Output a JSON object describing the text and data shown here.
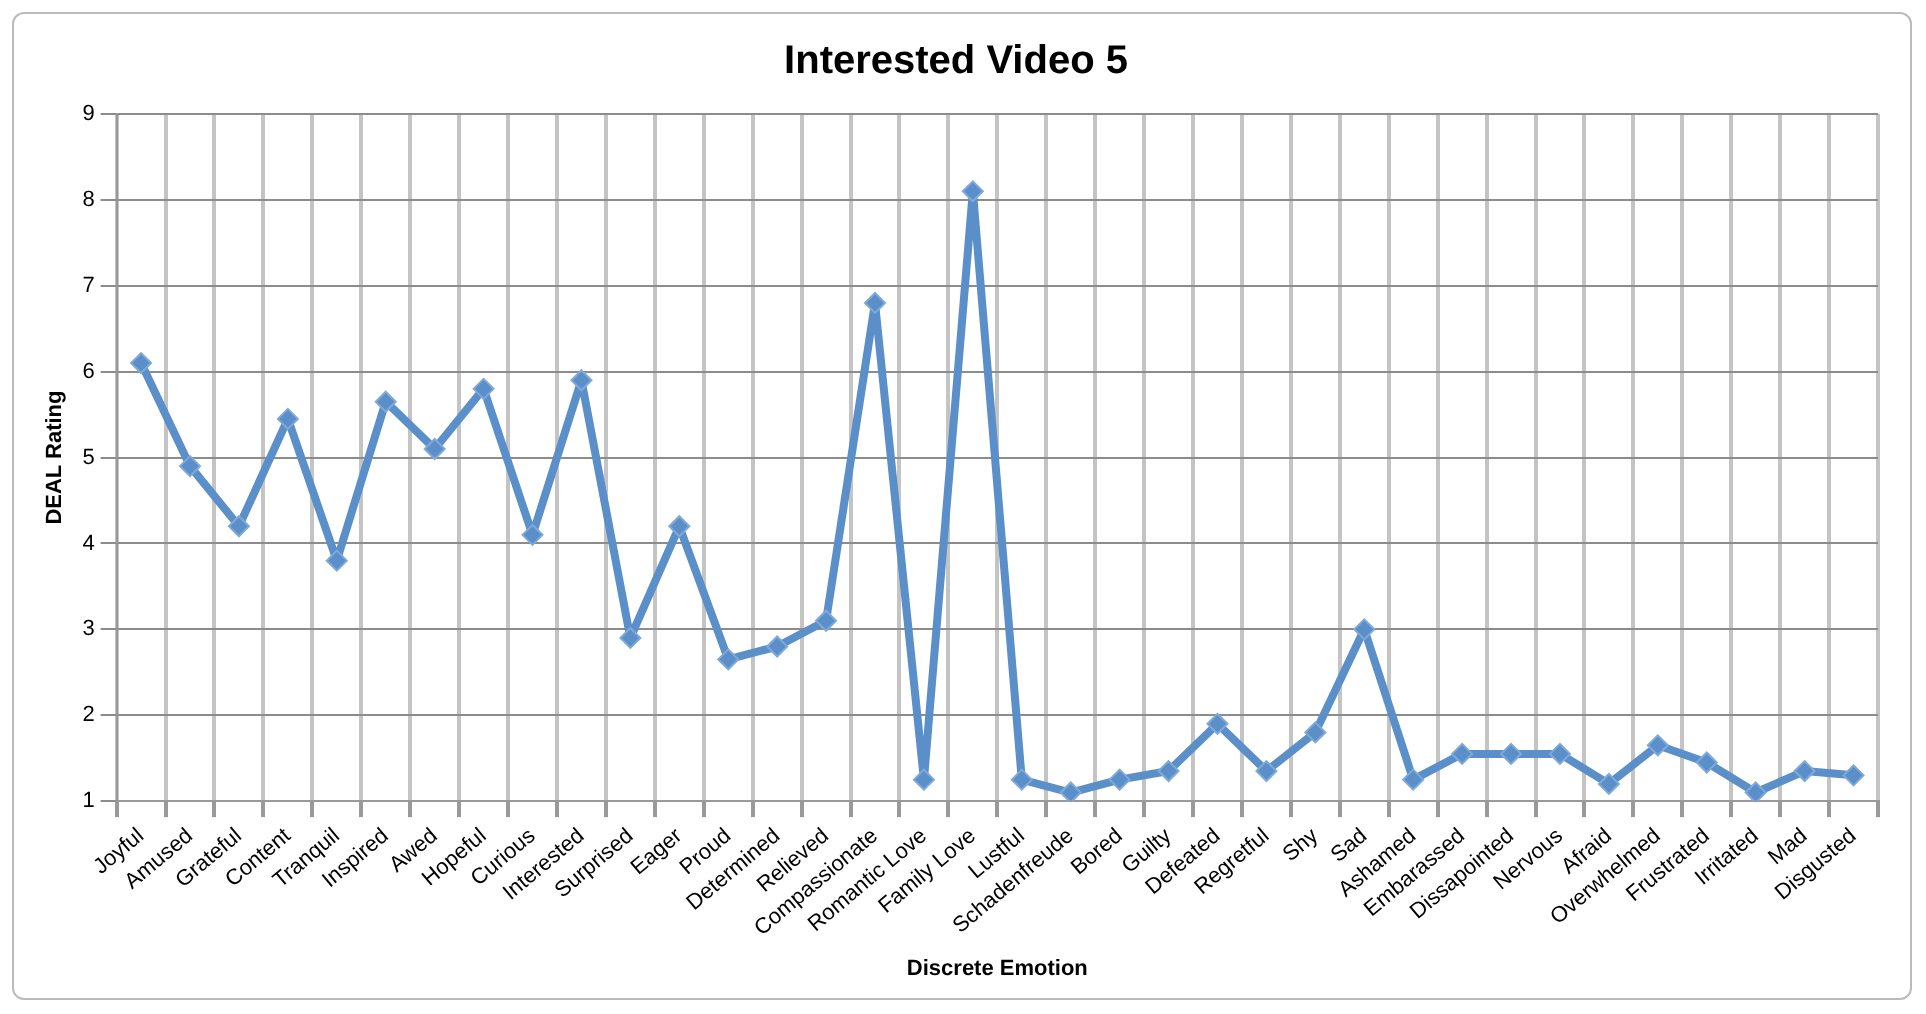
{
  "chart_data": {
    "type": "line",
    "title": "Interested Video 5",
    "xlabel": "Discrete Emotion",
    "ylabel": "DEAL Rating",
    "categories": [
      "Joyful",
      "Amused",
      "Grateful",
      "Content",
      "Tranquil",
      "Inspired",
      "Awed",
      "Hopeful",
      "Curious",
      "Interested",
      "Surprised",
      "Eager",
      "Proud",
      "Determined",
      "Relieved",
      "Compassionate",
      "Romantic Love",
      "Family Love",
      "Lustful",
      "Schadenfreude",
      "Bored",
      "Guilty",
      "Defeated",
      "Regretful",
      "Shy",
      "Sad",
      "Ashamed",
      "Embarassed",
      "Dissapointed",
      "Nervous",
      "Afraid",
      "Overwhelmed",
      "Frustrated",
      "Irritated",
      "Mad",
      "Disgusted"
    ],
    "series": [
      {
        "color": "#5b8fc9",
        "values": [
          6.1,
          4.9,
          4.2,
          5.45,
          3.8,
          5.65,
          5.1,
          5.8,
          4.1,
          5.9,
          2.9,
          4.2,
          2.65,
          2.8,
          3.1,
          6.8,
          1.25,
          8.1,
          1.25,
          1.1,
          1.25,
          1.35,
          1.9,
          1.35,
          1.8,
          3.0,
          1.25,
          1.55,
          1.55,
          1.55,
          1.2,
          1.65,
          1.45,
          1.1,
          1.35,
          1.3
        ]
      }
    ],
    "ylim": [
      1,
      9
    ],
    "yticks": [
      1,
      2,
      3,
      4,
      5,
      6,
      7,
      8,
      9
    ],
    "grid": true,
    "legend": false,
    "marker": "diamond",
    "line_style": "solid"
  }
}
